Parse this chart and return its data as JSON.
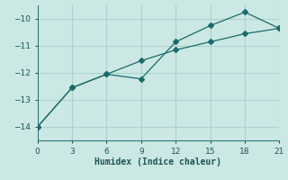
{
  "xlabel": "Humidex (Indice chaleur)",
  "bg_color": "#cce8e4",
  "line_color": "#1a6b6b",
  "grid_color": "#aad4d0",
  "xlim": [
    0,
    21
  ],
  "ylim": [
    -14.5,
    -9.5
  ],
  "xticks": [
    0,
    3,
    6,
    9,
    12,
    15,
    18,
    21
  ],
  "yticks": [
    -14,
    -13,
    -12,
    -11,
    -10
  ],
  "series1_x": [
    0,
    3,
    6,
    9,
    12,
    15,
    18,
    21
  ],
  "series1_y": [
    -14.0,
    -12.55,
    -12.05,
    -12.22,
    -10.85,
    -10.25,
    -9.75,
    -10.35
  ],
  "series2_x": [
    0,
    3,
    6,
    9,
    12,
    15,
    18,
    21
  ],
  "series2_y": [
    -14.0,
    -12.55,
    -12.05,
    -11.55,
    -11.15,
    -10.85,
    -10.55,
    -10.35
  ],
  "marker": "D",
  "marker_size": 3
}
